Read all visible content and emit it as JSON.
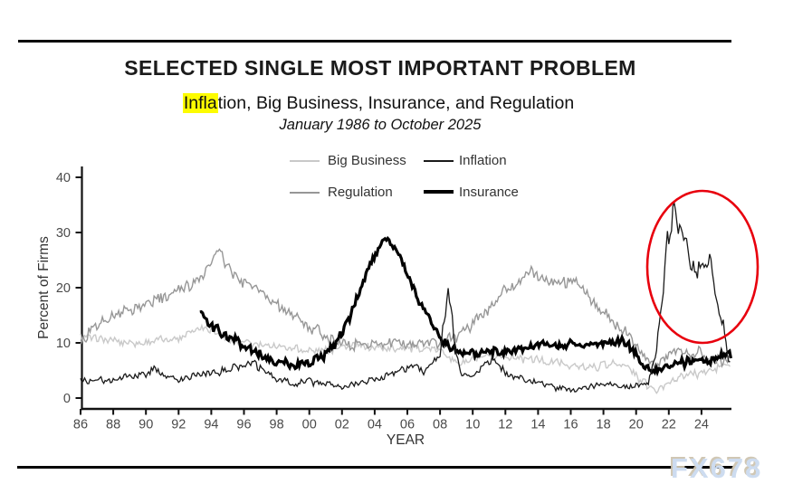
{
  "page": {
    "watermark": "FX678"
  },
  "header": {
    "title": "SELECTED SINGLE MOST IMPORTANT PROBLEM",
    "subtitle_highlight": "Infla",
    "subtitle_rest": "tion, Big Business, Insurance, and Regulation",
    "date_range": "January 1986 to October 2025"
  },
  "legend": [
    {
      "label": "Big Business",
      "color": "#c9c9c9",
      "thickness": 2
    },
    {
      "label": "Inflation",
      "color": "#1a1a1a",
      "thickness": 1.5
    },
    {
      "label": "Regulation",
      "color": "#979797",
      "thickness": 2
    },
    {
      "label": "Insurance",
      "color": "#000000",
      "thickness": 4
    }
  ],
  "chart_data": {
    "type": "line",
    "title": "SELECTED SINGLE MOST IMPORTANT PROBLEM",
    "subtitle": "Inflation, Big Business, Insurance, and Regulation",
    "date_range": "January 1986 to October 2025",
    "xlabel": "YEAR",
    "ylabel": "Percent of Firms",
    "xlim": [
      1986,
      2025.83
    ],
    "ylim": [
      0,
      40
    ],
    "y_ticks": [
      0,
      10,
      20,
      30,
      40
    ],
    "x_ticks": [
      "86",
      "88",
      "90",
      "92",
      "94",
      "96",
      "98",
      "00",
      "02",
      "04",
      "06",
      "08",
      "10",
      "12",
      "14",
      "16",
      "18",
      "20",
      "22",
      "24"
    ],
    "grid": false,
    "legend_position": "top-center",
    "annotation": {
      "shape": "ellipse",
      "color": "#e8000d",
      "circled_region": "Inflation spike, approx 2021-2025, peak ~37%"
    },
    "series": [
      {
        "name": "Big Business",
        "color": "#c9c9c9",
        "width": 1.4,
        "points": [
          [
            1986,
            11.5
          ],
          [
            1987,
            10.5
          ],
          [
            1988,
            10.5
          ],
          [
            1989,
            10
          ],
          [
            1990,
            10
          ],
          [
            1991,
            10.5
          ],
          [
            1992,
            11
          ],
          [
            1993,
            12.5
          ],
          [
            1993.7,
            13
          ],
          [
            1994.5,
            11.5
          ],
          [
            1995,
            10.5
          ],
          [
            1996,
            10
          ],
          [
            1997,
            9.5
          ],
          [
            1998,
            9.5
          ],
          [
            1999,
            9
          ],
          [
            2000,
            8.5
          ],
          [
            2001,
            8.5
          ],
          [
            2002,
            9.5
          ],
          [
            2003,
            9.5
          ],
          [
            2004,
            9
          ],
          [
            2005,
            9
          ],
          [
            2006,
            9
          ],
          [
            2007,
            9
          ],
          [
            2008,
            8.5
          ],
          [
            2008.8,
            7
          ],
          [
            2009.3,
            6
          ],
          [
            2010,
            7
          ],
          [
            2011,
            7.5
          ],
          [
            2012,
            7.5
          ],
          [
            2013,
            7
          ],
          [
            2014,
            7
          ],
          [
            2015,
            6.5
          ],
          [
            2016,
            6
          ],
          [
            2017,
            5.5
          ],
          [
            2018,
            6
          ],
          [
            2019,
            6.5
          ],
          [
            2020,
            4
          ],
          [
            2020.6,
            2.5
          ],
          [
            2021.2,
            1.2
          ],
          [
            2021.6,
            2
          ],
          [
            2022,
            3
          ],
          [
            2023,
            4
          ],
          [
            2024,
            4.5
          ],
          [
            2025,
            5.5
          ],
          [
            2025.83,
            6
          ]
        ]
      },
      {
        "name": "Regulation",
        "color": "#979797",
        "width": 1.4,
        "points": [
          [
            1986,
            10
          ],
          [
            1986.5,
            12
          ],
          [
            1987,
            13.5
          ],
          [
            1988,
            15
          ],
          [
            1989,
            16
          ],
          [
            1990,
            17.5
          ],
          [
            1991,
            18
          ],
          [
            1992,
            19.5
          ],
          [
            1993,
            21
          ],
          [
            1994,
            24.5
          ],
          [
            1994.5,
            26.5
          ],
          [
            1995,
            23.5
          ],
          [
            1996,
            21
          ],
          [
            1997,
            19.5
          ],
          [
            1998,
            17
          ],
          [
            1999,
            15
          ],
          [
            2000,
            13
          ],
          [
            2001,
            11
          ],
          [
            2002,
            10
          ],
          [
            2003,
            9.5
          ],
          [
            2004,
            10
          ],
          [
            2005,
            10
          ],
          [
            2006,
            10
          ],
          [
            2007,
            10
          ],
          [
            2008,
            10
          ],
          [
            2009,
            11
          ],
          [
            2010,
            13.5
          ],
          [
            2011,
            16.5
          ],
          [
            2012,
            19.5
          ],
          [
            2013,
            21.5
          ],
          [
            2013.6,
            23.5
          ],
          [
            2014,
            22
          ],
          [
            2015,
            21
          ],
          [
            2016.3,
            21.5
          ],
          [
            2017,
            18.5
          ],
          [
            2018,
            15.5
          ],
          [
            2019,
            13
          ],
          [
            2020,
            10
          ],
          [
            2020.7,
            7
          ],
          [
            2021.2,
            5.5
          ],
          [
            2021.6,
            6.5
          ],
          [
            2022,
            8
          ],
          [
            2023,
            8.5
          ],
          [
            2024,
            8
          ],
          [
            2025,
            7
          ],
          [
            2025.83,
            7
          ]
        ]
      },
      {
        "name": "Insurance",
        "color": "#000000",
        "width": 3.2,
        "points": [
          [
            1993.3,
            16
          ],
          [
            1993.6,
            14.5
          ],
          [
            1994,
            13
          ],
          [
            1994.5,
            12
          ],
          [
            1995,
            11
          ],
          [
            1996,
            9.5
          ],
          [
            1997,
            8
          ],
          [
            1998,
            6.5
          ],
          [
            1999,
            6
          ],
          [
            2000,
            6.5
          ],
          [
            2001,
            8
          ],
          [
            2001.5,
            9.5
          ],
          [
            2002,
            12
          ],
          [
            2002.5,
            15
          ],
          [
            2003,
            19
          ],
          [
            2003.5,
            23
          ],
          [
            2004,
            26
          ],
          [
            2004.6,
            28.5
          ],
          [
            2005,
            28
          ],
          [
            2005.5,
            26
          ],
          [
            2006,
            22
          ],
          [
            2006.5,
            19
          ],
          [
            2007,
            16
          ],
          [
            2007.5,
            13.5
          ],
          [
            2008,
            11
          ],
          [
            2008.5,
            9.5
          ],
          [
            2009,
            8.5
          ],
          [
            2010,
            8
          ],
          [
            2011,
            8.5
          ],
          [
            2012,
            8.5
          ],
          [
            2013,
            9
          ],
          [
            2014,
            9.5
          ],
          [
            2015,
            9.5
          ],
          [
            2016,
            10
          ],
          [
            2017,
            9.5
          ],
          [
            2018,
            10
          ],
          [
            2019,
            10.5
          ],
          [
            2019.8,
            9
          ],
          [
            2020.3,
            6
          ],
          [
            2021,
            5
          ],
          [
            2021.8,
            5.5
          ],
          [
            2022.5,
            6
          ],
          [
            2023,
            6.5
          ],
          [
            2024,
            7
          ],
          [
            2024.5,
            6.5
          ],
          [
            2025,
            7.5
          ],
          [
            2025.83,
            8
          ]
        ]
      },
      {
        "name": "Inflation",
        "color": "#1a1a1a",
        "width": 1.3,
        "points": [
          [
            1986,
            3.5
          ],
          [
            1987,
            3
          ],
          [
            1988,
            3.5
          ],
          [
            1989,
            4
          ],
          [
            1990,
            4.5
          ],
          [
            1990.6,
            5.5
          ],
          [
            1991,
            4
          ],
          [
            1992,
            3.5
          ],
          [
            1993,
            4
          ],
          [
            1994,
            4.5
          ],
          [
            1995,
            5
          ],
          [
            1996,
            6
          ],
          [
            1996.6,
            6.5
          ],
          [
            1997,
            5.5
          ],
          [
            1998,
            3.5
          ],
          [
            1999,
            2.5
          ],
          [
            2000,
            3
          ],
          [
            2001,
            2.5
          ],
          [
            2002,
            2
          ],
          [
            2003,
            2.5
          ],
          [
            2004,
            3.5
          ],
          [
            2005,
            4.5
          ],
          [
            2006,
            5.5
          ],
          [
            2006.5,
            6
          ],
          [
            2007,
            4.5
          ],
          [
            2008,
            8
          ],
          [
            2008.5,
            20
          ],
          [
            2008.9,
            10
          ],
          [
            2009.3,
            4
          ],
          [
            2010,
            4
          ],
          [
            2010.8,
            6.5
          ],
          [
            2011.3,
            7
          ],
          [
            2012,
            4.5
          ],
          [
            2013,
            3.5
          ],
          [
            2014,
            3
          ],
          [
            2015,
            2
          ],
          [
            2016,
            1.5
          ],
          [
            2017,
            2
          ],
          [
            2018,
            2.5
          ],
          [
            2019,
            2
          ],
          [
            2020,
            2
          ],
          [
            2020.8,
            3
          ],
          [
            2021.2,
            8
          ],
          [
            2021.6,
            17
          ],
          [
            2021.9,
            30
          ],
          [
            2022.05,
            28
          ],
          [
            2022.35,
            37
          ],
          [
            2022.6,
            30
          ],
          [
            2022.8,
            32
          ],
          [
            2023.1,
            27
          ],
          [
            2023.4,
            24
          ],
          [
            2023.7,
            22.5
          ],
          [
            2024,
            24.5
          ],
          [
            2024.2,
            23
          ],
          [
            2024.45,
            26
          ],
          [
            2024.7,
            22
          ],
          [
            2024.9,
            18
          ],
          [
            2025.1,
            14
          ],
          [
            2025.25,
            12.5
          ],
          [
            2025.35,
            14.5
          ],
          [
            2025.55,
            8
          ],
          [
            2025.7,
            6.5
          ],
          [
            2025.83,
            8
          ]
        ]
      }
    ]
  }
}
